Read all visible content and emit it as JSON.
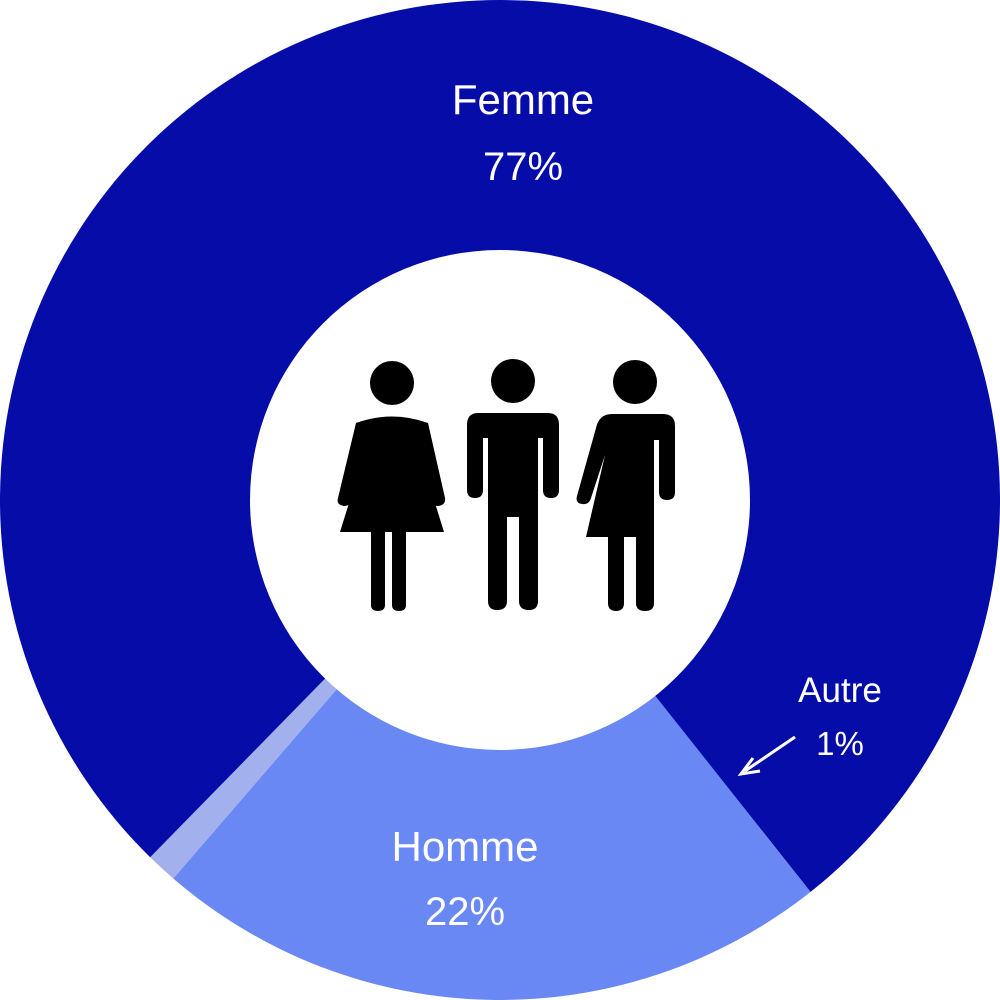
{
  "chart_data": {
    "type": "pie",
    "style": "donut",
    "categories": [
      "Femme",
      "Homme",
      "Autre"
    ],
    "values": [
      77,
      22,
      1
    ],
    "value_labels": [
      "77%",
      "22%",
      "1%"
    ],
    "colors": [
      "#050CA8",
      "#6A88F4",
      "#A3B0EE"
    ],
    "center_icon": "woman-man-person-restroom-icon",
    "legend": "none"
  }
}
